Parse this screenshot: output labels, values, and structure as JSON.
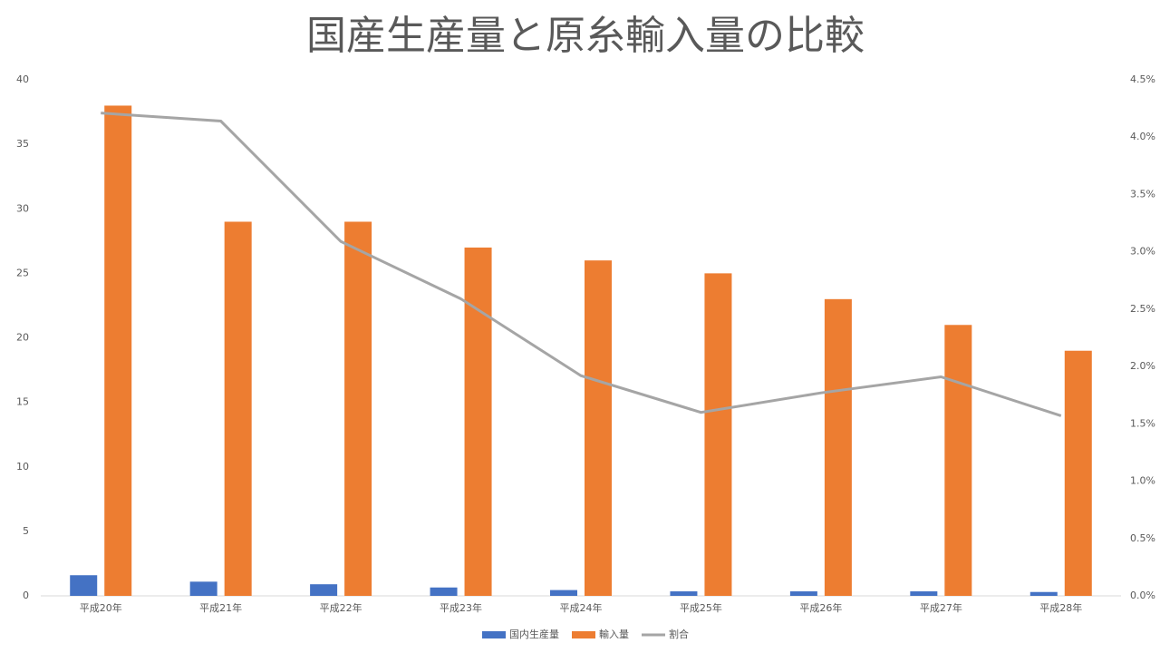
{
  "chart_data": {
    "type": "bar-line",
    "title": "国産生産量と原糸輸入量の比較",
    "categories": [
      "平成20年",
      "平成21年",
      "平成22年",
      "平成23年",
      "平成24年",
      "平成25年",
      "平成26年",
      "平成27年",
      "平成28年"
    ],
    "series": [
      {
        "name": "国内生産量",
        "color": "#4472c4",
        "type": "bar",
        "values": [
          1.6,
          1.1,
          0.9,
          0.65,
          0.45,
          0.35,
          0.35,
          0.35,
          0.3
        ]
      },
      {
        "name": "輸入量",
        "color": "#ed7d31",
        "type": "bar",
        "values": [
          38,
          29,
          29,
          27,
          26,
          25,
          23,
          21,
          19
        ]
      },
      {
        "name": "割合",
        "color": "#a5a5a5",
        "type": "line",
        "axis": "y2",
        "values": [
          4.21,
          4.14,
          3.09,
          2.59,
          1.92,
          1.6,
          1.77,
          1.91,
          1.57
        ]
      }
    ],
    "ylim": [
      0,
      40
    ],
    "yticks": [
      0,
      5,
      10,
      15,
      20,
      25,
      30,
      35,
      40
    ],
    "y2lim": [
      0,
      4.5
    ],
    "y2ticks": [
      {
        "value": 0,
        "label": "0.0%"
      },
      {
        "value": 0.5,
        "label": "0.5%"
      },
      {
        "value": 1,
        "label": "1.0%"
      },
      {
        "value": 1.5,
        "label": "1.5%"
      },
      {
        "value": 2,
        "label": "2.0%"
      },
      {
        "value": 2.5,
        "label": "2.5%"
      },
      {
        "value": 3,
        "label": "3.0%"
      },
      {
        "value": 3.5,
        "label": "3.5%"
      },
      {
        "value": 4,
        "label": "4.0%"
      },
      {
        "value": 4.5,
        "label": "4.5%"
      }
    ],
    "grid": false,
    "legend": "bottom"
  }
}
